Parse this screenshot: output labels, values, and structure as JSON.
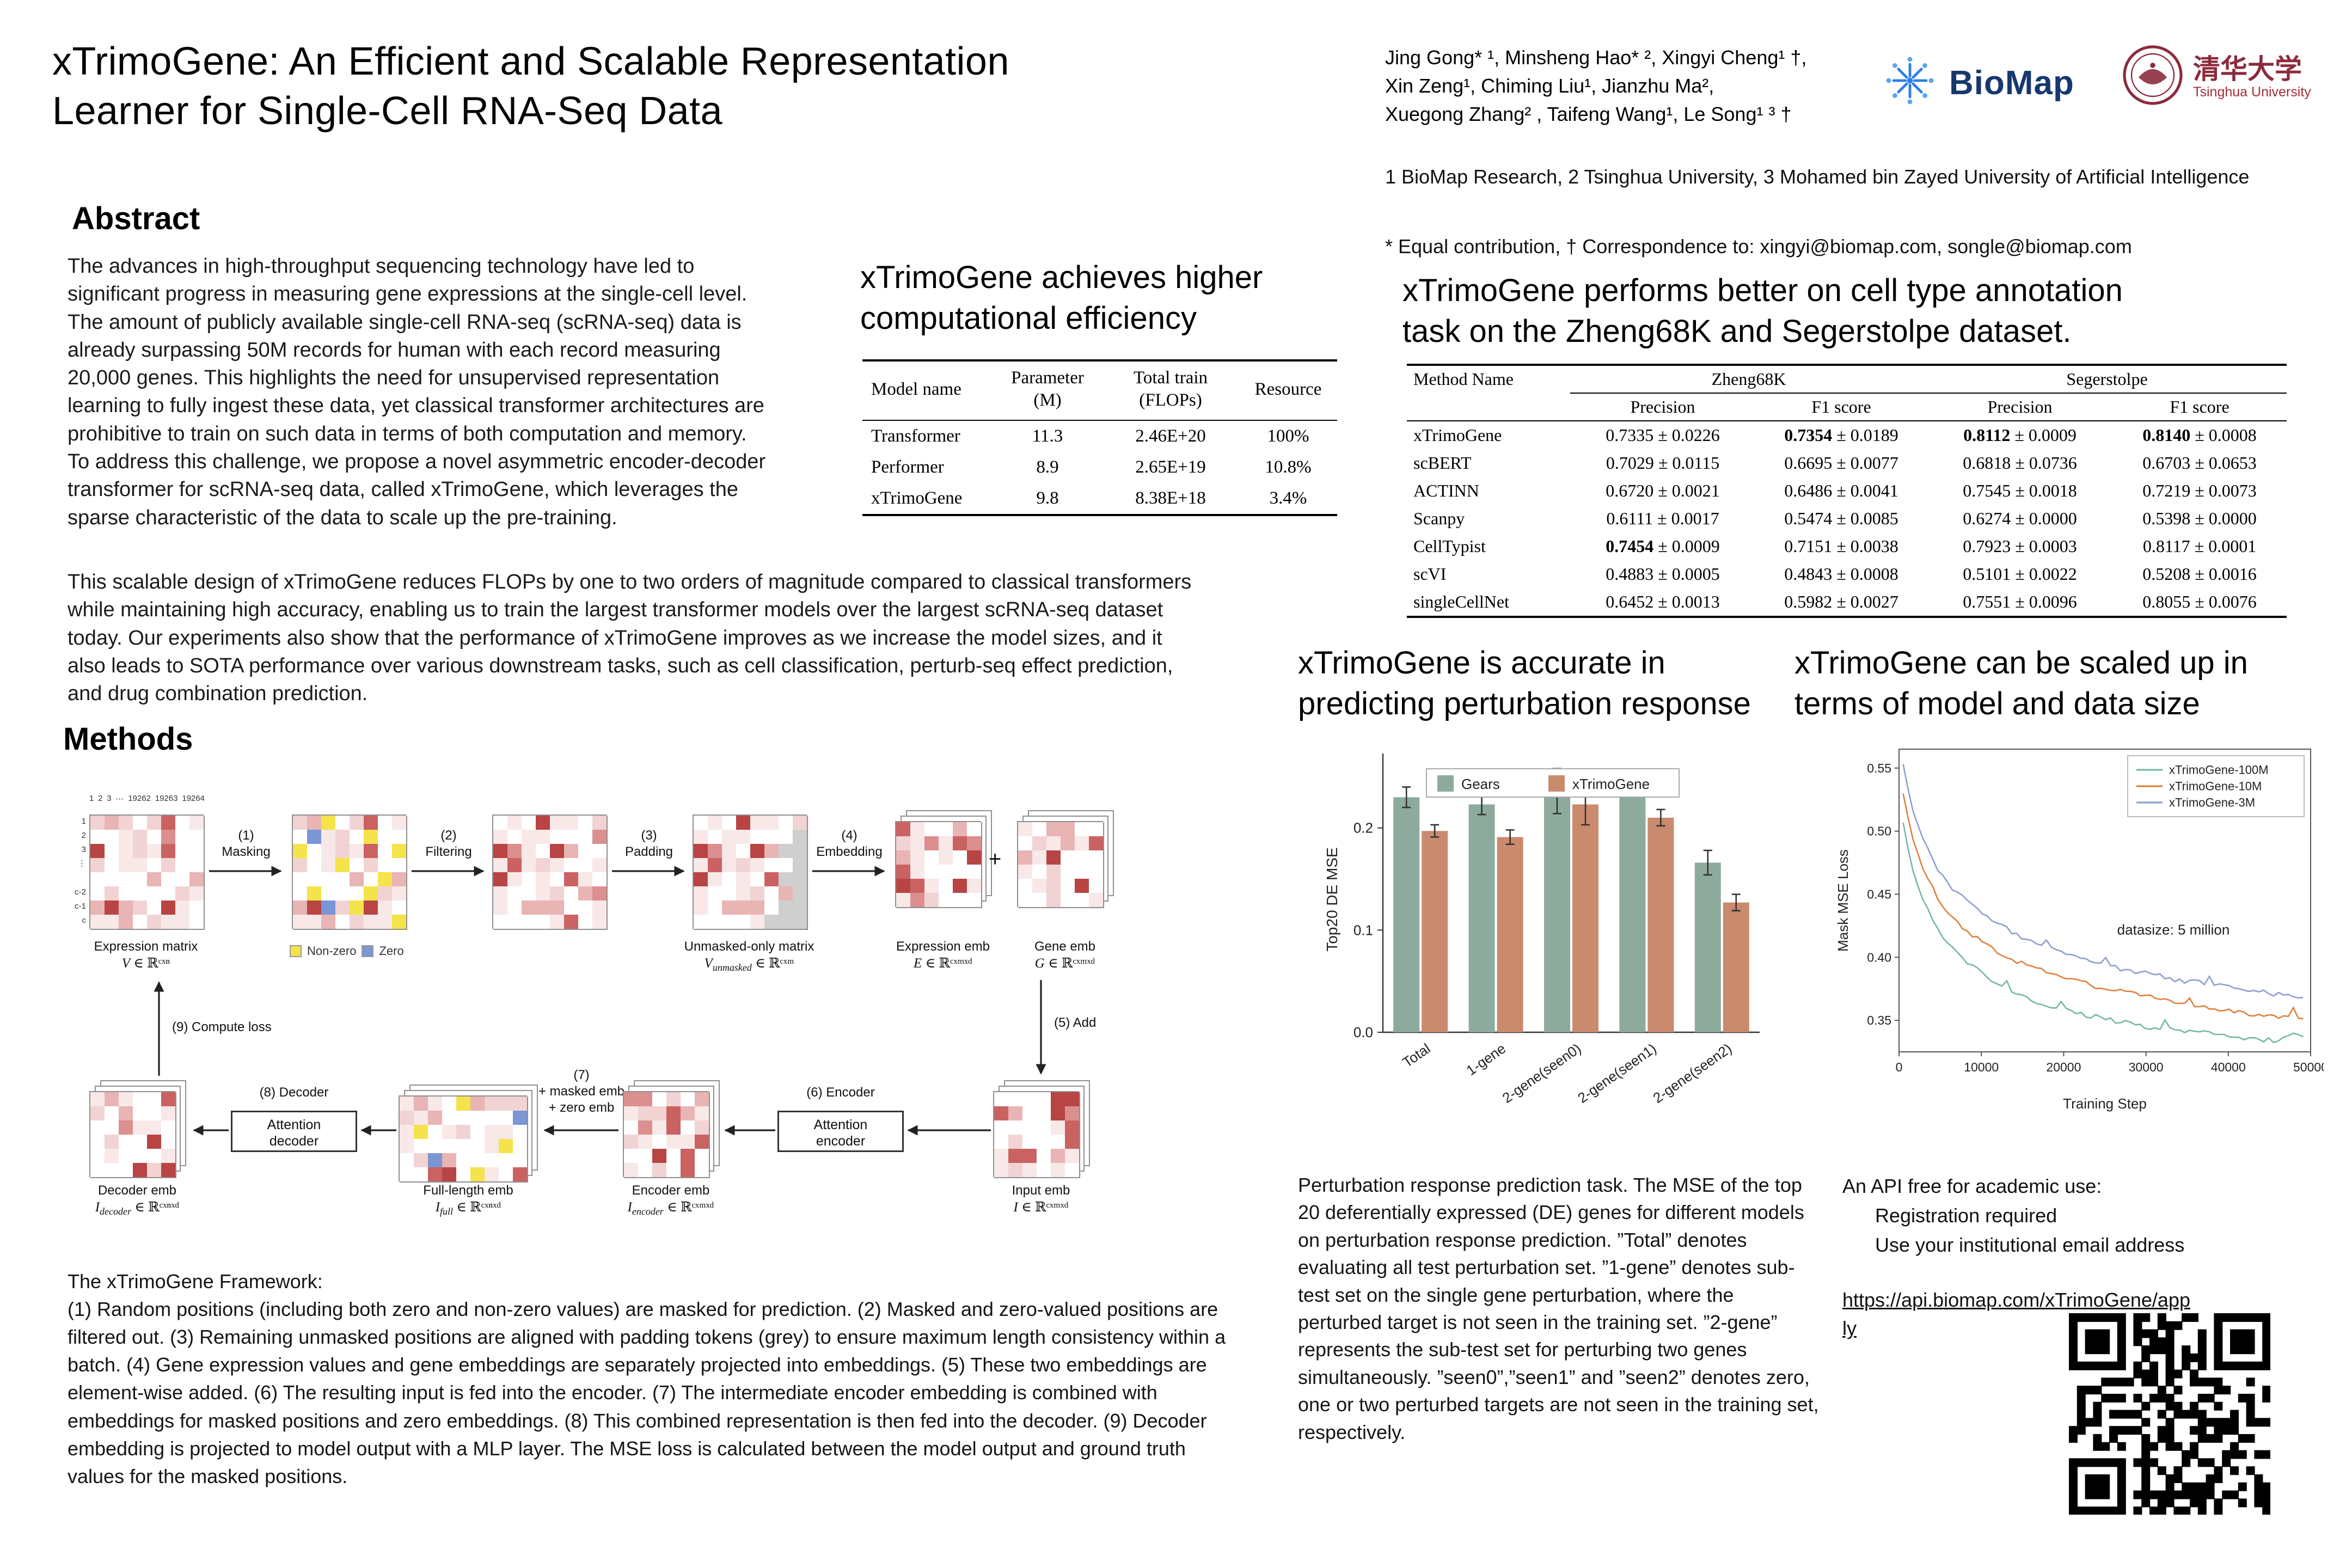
{
  "header": {
    "title": "xTrimoGene: An Efficient and Scalable Representation\nLearner for Single-Cell RNA-Seq Data",
    "author_lines": [
      "Jing Gong* ¹, Minsheng Hao* ², Xingyi Cheng¹ †,",
      "Xin Zeng¹, Chiming Liu¹, Jianzhu Ma²,",
      "Xuegong Zhang² , Taifeng Wang¹, Le Song¹ ³ †"
    ],
    "affiliations": "1 BioMap Research, 2 Tsinghua University, 3 Mohamed bin Zayed University of Artificial Intelligence",
    "correspondence": "* Equal contribution, † Correspondence to:  xingyi@biomap.com, songle@biomap.com",
    "logo_biomap": "BioMap",
    "logo_tsinghua_cn": "清华大学",
    "logo_tsinghua_en": "Tsinghua University"
  },
  "abstract": {
    "heading": "Abstract",
    "p1": "The advances in high-throughput sequencing technology have led to significant progress in measuring gene expressions at the single-cell level. The amount of publicly available single-cell RNA-seq (scRNA-seq) data is already surpassing 50M records for human with each record measuring 20,000 genes. This highlights the need for unsupervised representation learning to fully ingest these data, yet classical transformer architectures are prohibitive to train on such data in terms of both computation and memory. To address this challenge, we propose a novel asymmetric encoder-decoder transformer for scRNA-seq data, called xTrimoGene, which leverages the sparse characteristic of the data to scale up the pre-training.",
    "p2": "This scalable design of xTrimoGene reduces FLOPs by one to two orders of magnitude compared to classical transformers while maintaining high accuracy, enabling us to train the largest transformer models over the largest scRNA-seq dataset today. Our experiments also show that the performance of xTrimoGene improves as we increase the model sizes, and it also leads to SOTA performance over various downstream tasks, such as cell classification, perturb-seq effect prediction, and drug combination prediction."
  },
  "efficiency_table": {
    "heading": "xTrimoGene achieves higher\ncomputational efficiency",
    "columns": [
      [
        "Model name"
      ],
      [
        "Parameter",
        "(M)"
      ],
      [
        "Total train",
        "(FLOPs)"
      ],
      [
        "Resource"
      ]
    ],
    "rows": [
      [
        "Transformer",
        "11.3",
        "2.46E+20",
        "100%"
      ],
      [
        "Performer",
        "8.9",
        "2.65E+19",
        "10.8%"
      ],
      [
        "xTrimoGene",
        "9.8",
        "8.38E+18",
        "3.4%"
      ]
    ]
  },
  "annotation_table": {
    "heading": "xTrimoGene performs better on cell type annotation\ntask on the Zheng68K and Segerstolpe dataset.",
    "method_col": "Method Name",
    "groups": [
      "Zheng68K",
      "Segerstolpe"
    ],
    "sub_headers": [
      "Precision",
      "F1 score",
      "Precision",
      "F1 score"
    ],
    "rows": [
      {
        "method": "xTrimoGene",
        "cells": [
          [
            "0.7335",
            "0.0226",
            0
          ],
          [
            "0.7354",
            "0.0189",
            1
          ],
          [
            "0.8112",
            "0.0009",
            1
          ],
          [
            "0.8140",
            "0.0008",
            1
          ]
        ]
      },
      {
        "method": "scBERT",
        "cells": [
          [
            "0.7029",
            "0.0115",
            0
          ],
          [
            "0.6695",
            "0.0077",
            0
          ],
          [
            "0.6818",
            "0.0736",
            0
          ],
          [
            "0.6703",
            "0.0653",
            0
          ]
        ]
      },
      {
        "method": "ACTINN",
        "cells": [
          [
            "0.6720",
            "0.0021",
            0
          ],
          [
            "0.6486",
            "0.0041",
            0
          ],
          [
            "0.7545",
            "0.0018",
            0
          ],
          [
            "0.7219",
            "0.0073",
            0
          ]
        ]
      },
      {
        "method": "Scanpy",
        "cells": [
          [
            "0.6111",
            "0.0017",
            0
          ],
          [
            "0.5474",
            "0.0085",
            0
          ],
          [
            "0.6274",
            "0.0000",
            0
          ],
          [
            "0.5398",
            "0.0000",
            0
          ]
        ]
      },
      {
        "method": "CellTypist",
        "cells": [
          [
            "0.7454",
            "0.0009",
            1
          ],
          [
            "0.7151",
            "0.0038",
            0
          ],
          [
            "0.7923",
            "0.0003",
            0
          ],
          [
            "0.8117",
            "0.0001",
            0
          ]
        ]
      },
      {
        "method": "scVI",
        "cells": [
          [
            "0.4883",
            "0.0005",
            0
          ],
          [
            "0.4843",
            "0.0008",
            0
          ],
          [
            "0.5101",
            "0.0022",
            0
          ],
          [
            "0.5208",
            "0.0016",
            0
          ]
        ]
      },
      {
        "method": "singleCellNet",
        "cells": [
          [
            "0.6452",
            "0.0013",
            0
          ],
          [
            "0.5982",
            "0.0027",
            0
          ],
          [
            "0.7551",
            "0.0096",
            0
          ],
          [
            "0.8055",
            "0.0076",
            0
          ]
        ]
      }
    ]
  },
  "methods": {
    "heading": "Methods",
    "matrix_col_labels": [
      "1",
      "2",
      "3",
      "⋯",
      "19262",
      "19263",
      "19264"
    ],
    "matrix_row_labels": [
      "1",
      "2",
      "3",
      "⋮",
      "",
      "c-2",
      "c-1",
      "c"
    ],
    "plus_sign": "+",
    "steps": {
      "masking": "(1)\nMasking",
      "filtering": "(2)\nFiltering",
      "padding": "(3)\nPadding",
      "embedding": "(4)\nEmbedding",
      "add": "(5) Add",
      "encoder": "(6) Encoder",
      "combine": "(7)\n+ masked emb\n+ zero emb",
      "decoder": "(8) Decoder",
      "loss": "(9) Compute loss"
    },
    "boxes": {
      "encoder": "Attention\nencoder",
      "decoder": "Attention\ndecoder"
    },
    "legend": [
      {
        "label": "Non-zero",
        "color": "#f4e34b"
      },
      {
        "label": "Zero",
        "color": "#7b96d4"
      }
    ],
    "labels": {
      "expression": {
        "name": "Expression matrix",
        "sym": "V",
        "sub": "",
        "space": "ℝᶜˣⁿ"
      },
      "unmasked": {
        "name": "Unmasked-only matrix",
        "sym": "V",
        "sub": "unmasked",
        "space": "ℝᶜˣᵐ"
      },
      "expr_emb": {
        "name": "Expression emb",
        "sym": "E",
        "sub": "",
        "space": "ℝᶜˣᵐˣᵈ"
      },
      "gene_emb": {
        "name": "Gene emb",
        "sym": "G",
        "sub": "",
        "space": "ℝᶜˣᵐˣᵈ"
      },
      "input_emb": {
        "name": "Input emb",
        "sym": "I",
        "sub": "",
        "space": "ℝᶜˣᵐˣᵈ"
      },
      "encoder_emb": {
        "name": "Encoder emb",
        "sym": "I",
        "sub": "encoder",
        "space": "ℝᶜˣᵐˣᵈ"
      },
      "full_emb": {
        "name": "Full-length emb",
        "sym": "I",
        "sub": "full",
        "space": "ℝᶜˣⁿˣᵈ"
      },
      "decoder_emb": {
        "name": "Decoder emb",
        "sym": "I",
        "sub": "decoder",
        "space": "ℝᶜˣⁿˣᵈ"
      }
    },
    "framework_title": "The xTrimoGene Framework:",
    "framework_body": "(1) Random positions (including both zero and non-zero values) are masked for prediction. (2) Masked and zero-valued positions are filtered out. (3) Remaining unmasked positions are aligned with padding tokens (grey) to ensure maximum length consistency within a batch. (4) Gene expression values and gene embeddings are separately projected into embeddings. (5) These two embeddings are element-wise added. (6) The resulting input is fed into the encoder. (7) The intermediate encoder embedding is combined with embeddings for masked positions and zero embeddings. (8) This combined representation is then fed into the decoder. (9) Decoder embedding is projected to model output with a MLP layer. The MSE loss is calculated between the model output and ground truth values for the masked positions."
  },
  "palette": {
    "pinks": [
      "#ffffff",
      "#f8e8e8",
      "#f2d3d3",
      "#e9b4b4",
      "#dc8f8f",
      "#cb6262",
      "#b84444"
    ],
    "grey": "#cfcfcf",
    "grid": "#8f8f8f"
  },
  "chart_data": [
    {
      "type": "bar",
      "title": "xTrimoGene is accurate in\npredicting perturbation response",
      "ylabel": "Top20 DE MSE",
      "ylim": [
        0,
        0.26
      ],
      "yticks": [
        0.0,
        0.1,
        0.2
      ],
      "categories": [
        "Total",
        "1-gene",
        "2-gene(seen0)",
        "2-gene(seen1)",
        "2-gene(seen2)"
      ],
      "series": [
        {
          "name": "Gears",
          "color": "#8dab9c",
          "values": [
            0.23,
            0.223,
            0.236,
            0.246,
            0.166
          ],
          "errors": [
            0.01,
            0.01,
            0.022,
            0.011,
            0.012
          ]
        },
        {
          "name": "xTrimoGene",
          "color": "#c98a6e",
          "values": [
            0.197,
            0.191,
            0.223,
            0.21,
            0.127
          ],
          "errors": [
            0.006,
            0.007,
            0.02,
            0.008,
            0.008
          ]
        }
      ],
      "legend_position": "top",
      "grid": false
    },
    {
      "type": "line",
      "title": "xTrimoGene can be scaled up in\nterms of model and data size",
      "xlabel": "Training Step",
      "ylabel": "Mask MSE Loss",
      "xlim": [
        0,
        50000
      ],
      "ylim": [
        0.325,
        0.565
      ],
      "xticks": [
        0,
        10000,
        20000,
        30000,
        40000,
        50000
      ],
      "yticks": [
        0.35,
        0.4,
        0.45,
        0.5,
        0.55
      ],
      "annotation": "datasize: 5 million",
      "legend_position": "upper right",
      "grid": false,
      "series": [
        {
          "name": "xTrimoGene-100M",
          "color": "#76b7a6",
          "points": [
            [
              500,
              0.507
            ],
            [
              1500,
              0.472
            ],
            [
              3000,
              0.444
            ],
            [
              5000,
              0.42
            ],
            [
              7000,
              0.403
            ],
            [
              9000,
              0.392
            ],
            [
              12000,
              0.379
            ],
            [
              15000,
              0.369
            ],
            [
              18000,
              0.362
            ],
            [
              22000,
              0.355
            ],
            [
              26000,
              0.35
            ],
            [
              30000,
              0.345
            ],
            [
              34000,
              0.342
            ],
            [
              38000,
              0.339
            ],
            [
              42000,
              0.336
            ],
            [
              46000,
              0.334
            ],
            [
              48000,
              0.342
            ],
            [
              49500,
              0.336
            ]
          ]
        },
        {
          "name": "xTrimoGene-10M",
          "color": "#e0803c",
          "points": [
            [
              500,
              0.53
            ],
            [
              1500,
              0.497
            ],
            [
              3000,
              0.468
            ],
            [
              5000,
              0.444
            ],
            [
              7000,
              0.428
            ],
            [
              9000,
              0.417
            ],
            [
              12000,
              0.404
            ],
            [
              15000,
              0.395
            ],
            [
              18000,
              0.388
            ],
            [
              22000,
              0.38
            ],
            [
              26000,
              0.374
            ],
            [
              30000,
              0.369
            ],
            [
              34000,
              0.364
            ],
            [
              38000,
              0.36
            ],
            [
              42000,
              0.356
            ],
            [
              46000,
              0.353
            ],
            [
              49500,
              0.351
            ]
          ]
        },
        {
          "name": "xTrimoGene-3M",
          "color": "#8d9fce",
          "points": [
            [
              500,
              0.553
            ],
            [
              1500,
              0.52
            ],
            [
              3000,
              0.492
            ],
            [
              5000,
              0.467
            ],
            [
              7000,
              0.451
            ],
            [
              9000,
              0.44
            ],
            [
              12000,
              0.426
            ],
            [
              15000,
              0.416
            ],
            [
              18000,
              0.408
            ],
            [
              22000,
              0.399
            ],
            [
              26000,
              0.392
            ],
            [
              30000,
              0.387
            ],
            [
              34000,
              0.382
            ],
            [
              38000,
              0.378
            ],
            [
              42000,
              0.374
            ],
            [
              46000,
              0.371
            ],
            [
              49500,
              0.368
            ]
          ]
        }
      ]
    }
  ],
  "perturbation_caption": "Perturbation response prediction task. The MSE of the top 20 deferentially expressed (DE) genes for different models on perturbation response prediction. ”Total” denotes evaluating all test perturbation set. ”1-gene” denotes sub-test set on the single gene perturbation, where the perturbed target is not seen in the training set. ”2-gene” represents the sub-test set for perturbing two genes simultaneously. ”seen0”,”seen1” and ”seen2” denotes zero, one or two perturbed targets are not seen in the training set, respectively.",
  "api": {
    "line1": "An API free for academic use:",
    "line2": "Registration required",
    "line3": "Use your institutional email address",
    "url": "https://api.biomap.com/xTrimoGene/apply"
  }
}
